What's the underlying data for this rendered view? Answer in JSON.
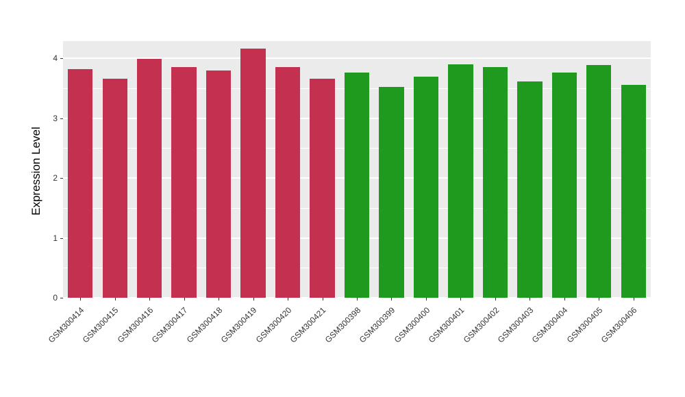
{
  "figure": {
    "background": "#FFFFFF",
    "panel_background": "#EBEBEB",
    "gridline_color": "#FFFFFF",
    "axis_text_color": "#333333",
    "axis_title_color": "#000000"
  },
  "chart_data": {
    "type": "bar",
    "title": "",
    "xlabel": "",
    "ylabel": "Expression Level",
    "ylim": [
      0,
      4.29
    ],
    "yticks": [
      0,
      1,
      2,
      3,
      4
    ],
    "minor_gridlines": [
      0.5,
      1.5,
      2.5,
      3.5
    ],
    "grid": true,
    "legend": "none",
    "categories": [
      "GSM300414",
      "GSM300415",
      "GSM300416",
      "GSM300417",
      "GSM300418",
      "GSM300419",
      "GSM300420",
      "GSM300421",
      "GSM300398",
      "GSM300399",
      "GSM300400",
      "GSM300401",
      "GSM300402",
      "GSM300403",
      "GSM300404",
      "GSM300405",
      "GSM300406"
    ],
    "values": [
      3.82,
      3.66,
      3.99,
      3.86,
      3.8,
      4.16,
      3.86,
      3.66,
      3.76,
      3.52,
      3.69,
      3.9,
      3.86,
      3.61,
      3.76,
      3.89,
      3.56
    ],
    "bar_colors": [
      "#C43150",
      "#C43150",
      "#C43150",
      "#C43150",
      "#C43150",
      "#C43150",
      "#C43150",
      "#C43150",
      "#1F9A1E",
      "#1F9A1E",
      "#1F9A1E",
      "#1F9A1E",
      "#1F9A1E",
      "#1F9A1E",
      "#1F9A1E",
      "#1F9A1E",
      "#1F9A1E"
    ],
    "group_colors": {
      "group1": "#C43150",
      "group2": "#1F9A1E"
    }
  }
}
